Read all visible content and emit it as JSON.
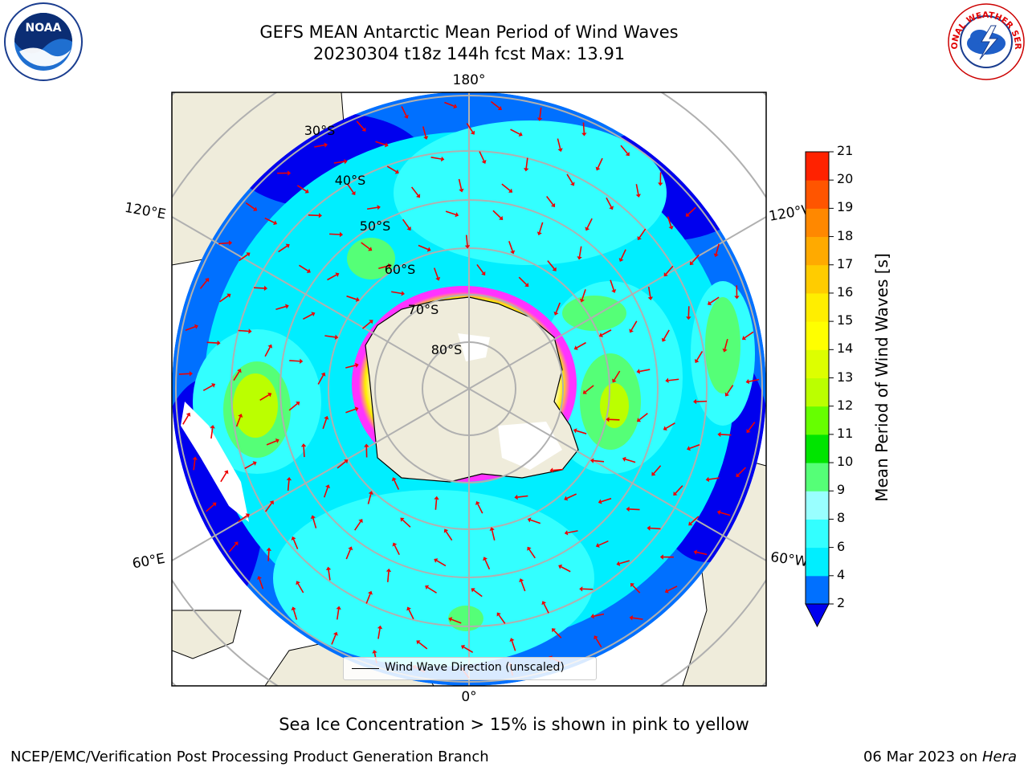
{
  "header": {
    "title_line1": "GEFS MEAN Antarctic Mean Period of Wind Waves",
    "title_line2": "20230304 t18z 144h fcst   Max: 13.91"
  },
  "logos": {
    "noaa_text": "NOAA",
    "nws_text": "NATIONAL WEATHER SERVICE"
  },
  "map": {
    "meridian_labels": {
      "top": "180°",
      "bottom": "0°",
      "left_upper": "120°E",
      "right_upper": "120°W",
      "left_lower": "60°E",
      "right_lower": "60°W"
    },
    "latitude_labels": [
      "30°S",
      "40°S",
      "50°S",
      "60°S",
      "70°S",
      "80°S"
    ],
    "legend": {
      "label": "Wind Wave Direction (unscaled)"
    },
    "colors": {
      "land": "#efecdb",
      "ocean_low": "#0000ee",
      "ice": "#ff33ff"
    }
  },
  "colorbar": {
    "title": "Mean Period of Wind Waves [s]",
    "ticks": [
      "2",
      "4",
      "6",
      "8",
      "9",
      "10",
      "11",
      "12",
      "13",
      "14",
      "15",
      "16",
      "17",
      "18",
      "19",
      "20",
      "21"
    ],
    "colors": [
      "#0070ff",
      "#00eeff",
      "#33ffff",
      "#99ffff",
      "#55ff77",
      "#00e500",
      "#66ff00",
      "#bbff00",
      "#ddff00",
      "#ffff00",
      "#ffee00",
      "#ffcc00",
      "#ffaa00",
      "#ff8800",
      "#ff5500",
      "#ff2200"
    ],
    "under_color": "#0000ee"
  },
  "caption": "Sea Ice Concentration > 15% is shown in pink to yellow",
  "footer": {
    "left": "NCEP/EMC/Verification Post Processing Product Generation Branch",
    "right_date": "06 Mar 2023 on ",
    "right_host": "Hera"
  }
}
